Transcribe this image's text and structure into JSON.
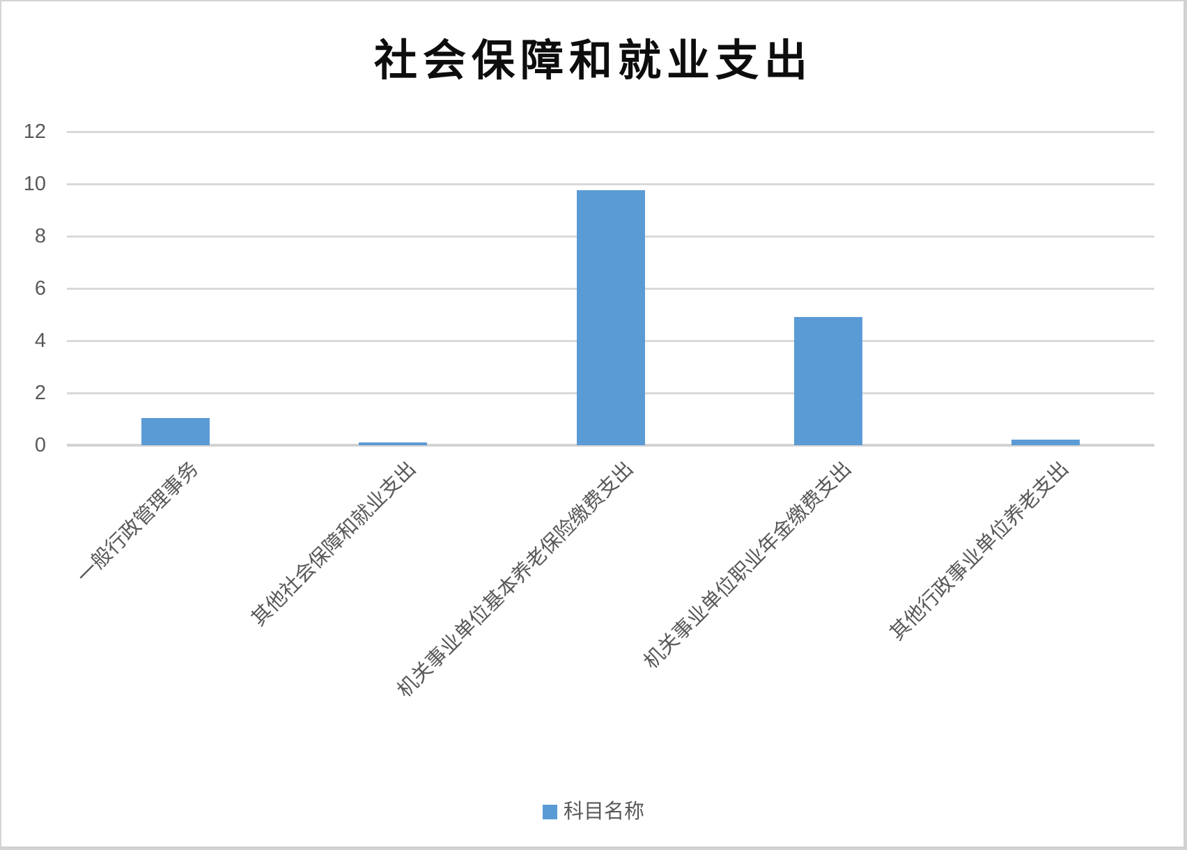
{
  "colors": {
    "bar": "#5b9bd5",
    "gridline": "#d9d9d9",
    "axis_line": "#d2d2d2",
    "tick_text": "#595959",
    "title_text": "#0d0d0d"
  },
  "chart_data": {
    "type": "bar",
    "title": "社会保障和就业支出",
    "categories": [
      "一般行政管理事务",
      "其他社会保障和就业支出",
      "机关事业单位基本养老保险缴费支出",
      "机关事业单位职业年金缴费支出",
      "其他行政事业单位养老支出"
    ],
    "series": [
      {
        "name": "科目名称",
        "values": [
          1.05,
          0.1,
          9.75,
          4.9,
          0.2
        ]
      }
    ],
    "xlabel": "",
    "ylabel": "",
    "ylim": [
      0,
      12
    ],
    "yticks": [
      0,
      2,
      4,
      6,
      8,
      10,
      12
    ],
    "grid": "horizontal",
    "legend_position": "bottom",
    "x_label_rotation_deg": 45
  }
}
